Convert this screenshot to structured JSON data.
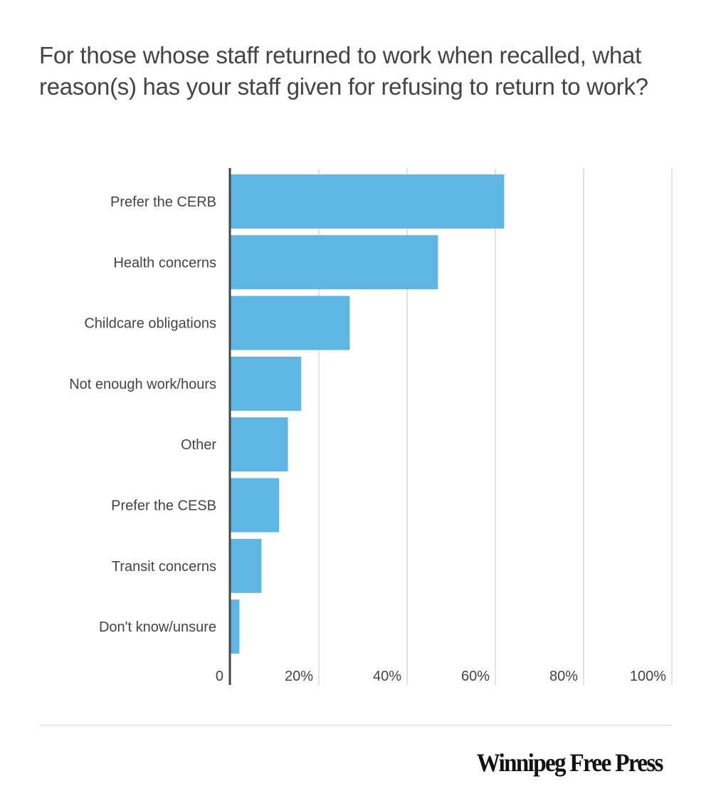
{
  "chart_data": {
    "type": "bar",
    "orientation": "horizontal",
    "title": "For those whose staff returned to work when recalled, what reason(s) has your staff given for refusing to return to work?",
    "xlabel": "",
    "ylabel": "",
    "categories": [
      "Prefer the CERB",
      "Health concerns",
      "Childcare obligations",
      "Not enough work/hours",
      "Other",
      "Prefer the CESB",
      "Transit concerns",
      "Don't know/unsure"
    ],
    "values": [
      62,
      47,
      27,
      16,
      13,
      11,
      7,
      2
    ],
    "unit": "%",
    "xlim": [
      0,
      100
    ],
    "xticks": [
      0,
      20,
      40,
      60,
      80,
      100
    ],
    "xtick_labels": [
      "0",
      "20%",
      "40%",
      "60%",
      "80%",
      "100%"
    ],
    "grid": true,
    "legend": "none",
    "bar_color": "#5fb6e3"
  },
  "footer": {
    "source_logo": "Winnipeg Free Press"
  }
}
